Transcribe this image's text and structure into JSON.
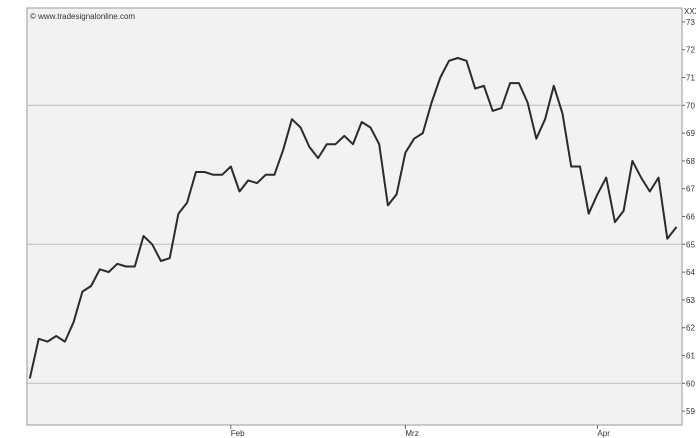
{
  "source_label": "© www.tradesignalonline.com",
  "chart_data": {
    "type": "line",
    "title": "",
    "xlabel": "",
    "ylabel": "",
    "y_unit_label": "XXX",
    "ylim": [
      58.5,
      73.5
    ],
    "y_ticks": [
      59,
      60,
      61,
      62,
      63,
      64,
      65,
      66,
      67,
      68,
      69,
      70,
      71,
      72,
      73
    ],
    "y_gridlines": [
      60,
      65,
      70
    ],
    "x_month_labels": [
      {
        "label": "Feb",
        "index": 23
      },
      {
        "label": "Mrz",
        "index": 43
      },
      {
        "label": "Apr",
        "index": 65
      }
    ],
    "x_count": 75,
    "grid": true,
    "legend": "none",
    "colors": {
      "line": "#2b2b2b",
      "background": "#f2f2f2",
      "grid": "#bdbdbd"
    },
    "series": [
      {
        "values": [
          60.2,
          61.6,
          61.5,
          61.7,
          61.5,
          62.2,
          63.3,
          63.5,
          64.1,
          64.0,
          64.3,
          64.2,
          64.2,
          65.3,
          65.0,
          64.4,
          64.5,
          66.1,
          66.5,
          67.6,
          67.6,
          67.5,
          67.5,
          67.8,
          66.9,
          67.3,
          67.2,
          67.5,
          67.5,
          68.4,
          69.5,
          69.2,
          68.5,
          68.1,
          68.6,
          68.6,
          68.9,
          68.6,
          69.4,
          69.2,
          68.6,
          66.4,
          66.8,
          68.3,
          68.8,
          69.0,
          70.1,
          71.0,
          71.6,
          71.7,
          71.6,
          70.6,
          70.7,
          69.8,
          69.9,
          70.8,
          70.8,
          70.1,
          68.8,
          69.5,
          70.7,
          69.7,
          67.8,
          67.8,
          66.1,
          66.8,
          67.4,
          65.8,
          66.2,
          68.0,
          67.4,
          66.9,
          67.4,
          65.2,
          65.6
        ]
      }
    ]
  }
}
